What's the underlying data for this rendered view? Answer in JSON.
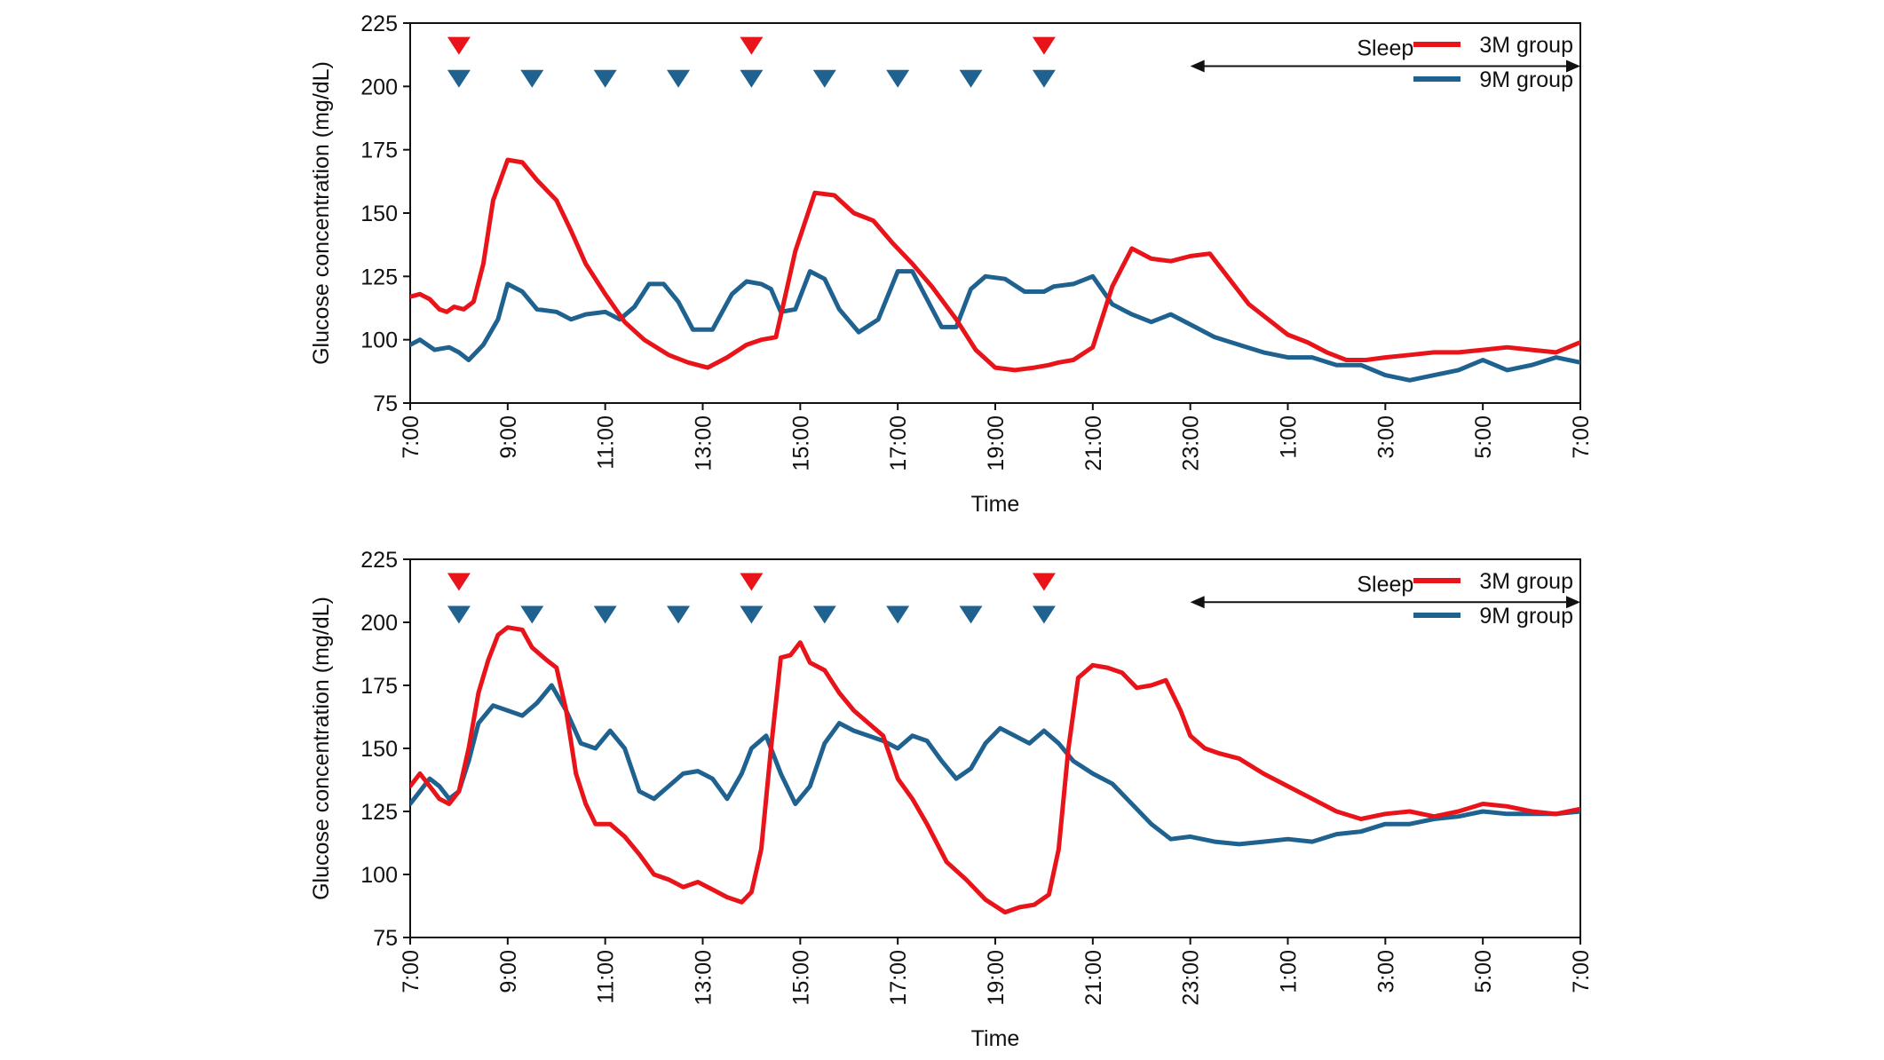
{
  "chart_data": [
    {
      "type": "line",
      "panel": "top",
      "xlabel": "Time",
      "ylabel": "Glucose concentration (mg/dL)",
      "ylim": [
        75,
        225
      ],
      "yticks": [
        75,
        100,
        125,
        150,
        175,
        200,
        225
      ],
      "xlim": [
        0,
        24
      ],
      "x_unit": "hours after 7:00",
      "xtick_labels": [
        "7:00",
        "9:00",
        "11:00",
        "13:00",
        "15:00",
        "17:00",
        "19:00",
        "21:00",
        "23:00",
        "1:00",
        "3:00",
        "5:00",
        "7:00"
      ],
      "annotation": {
        "text": "Sleep",
        "from_x": 16,
        "to_x": 24,
        "y": 208
      },
      "markers": [
        {
          "name": "3M group",
          "color": "#e8141a",
          "y": 216,
          "x": [
            1,
            7,
            13
          ]
        },
        {
          "name": "9M group",
          "color": "#1f6290",
          "y": 203,
          "x": [
            1,
            2.5,
            4,
            5.5,
            7,
            8.5,
            10,
            11.5,
            13
          ]
        }
      ],
      "series": [
        {
          "name": "3M group",
          "color": "#e8141a",
          "x": [
            0,
            0.2,
            0.4,
            0.6,
            0.75,
            0.9,
            1.1,
            1.3,
            1.5,
            1.7,
            2.0,
            2.3,
            2.6,
            3.0,
            3.3,
            3.6,
            4.0,
            4.4,
            4.8,
            5.3,
            5.7,
            6.1,
            6.5,
            6.9,
            7.2,
            7.5,
            7.7,
            7.9,
            8.3,
            8.7,
            9.1,
            9.5,
            9.9,
            10.3,
            10.7,
            11.2,
            11.6,
            12.0,
            12.4,
            12.8,
            13.1,
            13.3,
            13.6,
            14.0,
            14.4,
            14.8,
            15.2,
            15.6,
            16.0,
            16.4,
            16.8,
            17.2,
            17.6,
            18.0,
            18.4,
            18.8,
            19.2,
            19.6,
            20.0,
            20.5,
            21.0,
            21.5,
            22.0,
            22.5,
            23.0,
            23.5,
            24.0
          ],
          "values": [
            117,
            118,
            116,
            112,
            111,
            113,
            112,
            115,
            130,
            155,
            171,
            170,
            163,
            155,
            143,
            130,
            118,
            107,
            100,
            94,
            91,
            89,
            93,
            98,
            100,
            101,
            118,
            135,
            158,
            157,
            150,
            147,
            138,
            130,
            121,
            108,
            96,
            89,
            88,
            89,
            90,
            91,
            92,
            97,
            121,
            136,
            132,
            131,
            133,
            134,
            124,
            114,
            108,
            102,
            99,
            95,
            92,
            92,
            93,
            94,
            95,
            95,
            96,
            97,
            96,
            95,
            99
          ]
        },
        {
          "name": "9M group",
          "color": "#1f6290",
          "x": [
            0,
            0.2,
            0.5,
            0.8,
            1.0,
            1.2,
            1.5,
            1.8,
            2.0,
            2.3,
            2.6,
            3.0,
            3.3,
            3.6,
            4.0,
            4.3,
            4.6,
            4.9,
            5.2,
            5.5,
            5.8,
            6.2,
            6.6,
            6.9,
            7.2,
            7.4,
            7.6,
            7.9,
            8.2,
            8.5,
            8.8,
            9.2,
            9.6,
            10.0,
            10.3,
            10.6,
            10.9,
            11.2,
            11.5,
            11.8,
            12.2,
            12.6,
            13.0,
            13.2,
            13.6,
            14.0,
            14.4,
            14.8,
            15.2,
            15.6,
            16.0,
            16.5,
            17.0,
            17.5,
            18.0,
            18.5,
            19.0,
            19.5,
            20.0,
            20.5,
            21.0,
            21.5,
            22.0,
            22.5,
            23.0,
            23.5,
            24.0
          ],
          "values": [
            98,
            100,
            96,
            97,
            95,
            92,
            98,
            108,
            122,
            119,
            112,
            111,
            108,
            110,
            111,
            108,
            113,
            122,
            122,
            115,
            104,
            104,
            118,
            123,
            122,
            120,
            111,
            112,
            127,
            124,
            112,
            103,
            108,
            127,
            127,
            116,
            105,
            105,
            120,
            125,
            124,
            119,
            119,
            121,
            122,
            125,
            114,
            110,
            107,
            110,
            106,
            101,
            98,
            95,
            93,
            93,
            90,
            90,
            86,
            84,
            86,
            88,
            92,
            88,
            90,
            93,
            91
          ]
        }
      ]
    },
    {
      "type": "line",
      "panel": "bottom",
      "xlabel": "Time",
      "ylabel": "Glucose concentration (mg/dL)",
      "ylim": [
        75,
        225
      ],
      "yticks": [
        75,
        100,
        125,
        150,
        175,
        200,
        225
      ],
      "xlim": [
        0,
        24
      ],
      "x_unit": "hours after 7:00",
      "xtick_labels": [
        "7:00",
        "9:00",
        "11:00",
        "13:00",
        "15:00",
        "17:00",
        "19:00",
        "21:00",
        "23:00",
        "1:00",
        "3:00",
        "5:00",
        "7:00"
      ],
      "annotation": {
        "text": "Sleep",
        "from_x": 16,
        "to_x": 24,
        "y": 208
      },
      "markers": [
        {
          "name": "3M group",
          "color": "#e8141a",
          "y": 216,
          "x": [
            1,
            7,
            13
          ]
        },
        {
          "name": "9M group",
          "color": "#1f6290",
          "y": 203,
          "x": [
            1,
            2.5,
            4,
            5.5,
            7,
            8.5,
            10,
            11.5,
            13
          ]
        }
      ],
      "series": [
        {
          "name": "3M group",
          "color": "#e8141a",
          "x": [
            0,
            0.2,
            0.4,
            0.6,
            0.8,
            1.0,
            1.2,
            1.4,
            1.6,
            1.8,
            2.0,
            2.3,
            2.5,
            2.8,
            3.0,
            3.2,
            3.4,
            3.6,
            3.8,
            4.1,
            4.4,
            4.7,
            5.0,
            5.3,
            5.6,
            5.9,
            6.2,
            6.5,
            6.8,
            7.0,
            7.2,
            7.4,
            7.6,
            7.8,
            8.0,
            8.2,
            8.5,
            8.8,
            9.1,
            9.4,
            9.7,
            10.0,
            10.3,
            10.6,
            11.0,
            11.4,
            11.8,
            12.2,
            12.5,
            12.8,
            13.1,
            13.3,
            13.5,
            13.7,
            14.0,
            14.3,
            14.6,
            14.9,
            15.2,
            15.5,
            15.8,
            16.0,
            16.3,
            16.6,
            17.0,
            17.5,
            18.0,
            18.5,
            19.0,
            19.5,
            20.0,
            20.5,
            21.0,
            21.5,
            22.0,
            22.5,
            23.0,
            23.5,
            24.0
          ],
          "values": [
            135,
            140,
            135,
            130,
            128,
            133,
            150,
            172,
            185,
            195,
            198,
            197,
            190,
            185,
            182,
            165,
            140,
            128,
            120,
            120,
            115,
            108,
            100,
            98,
            95,
            97,
            94,
            91,
            89,
            93,
            110,
            150,
            186,
            187,
            192,
            184,
            181,
            172,
            165,
            160,
            155,
            138,
            130,
            120,
            105,
            98,
            90,
            85,
            87,
            88,
            92,
            110,
            150,
            178,
            183,
            182,
            180,
            174,
            175,
            177,
            165,
            155,
            150,
            148,
            146,
            140,
            135,
            130,
            125,
            122,
            124,
            125,
            123,
            125,
            128,
            127,
            125,
            124,
            126
          ]
        },
        {
          "name": "9M group",
          "color": "#1f6290",
          "x": [
            0,
            0.2,
            0.4,
            0.6,
            0.8,
            1.0,
            1.2,
            1.4,
            1.7,
            2.0,
            2.3,
            2.6,
            2.9,
            3.2,
            3.5,
            3.8,
            4.1,
            4.4,
            4.7,
            5.0,
            5.3,
            5.6,
            5.9,
            6.2,
            6.5,
            6.8,
            7.0,
            7.3,
            7.6,
            7.9,
            8.2,
            8.5,
            8.8,
            9.1,
            9.4,
            9.7,
            10.0,
            10.3,
            10.6,
            10.9,
            11.2,
            11.5,
            11.8,
            12.1,
            12.4,
            12.7,
            13.0,
            13.3,
            13.6,
            14.0,
            14.4,
            14.8,
            15.2,
            15.6,
            16.0,
            16.5,
            17.0,
            17.5,
            18.0,
            18.5,
            19.0,
            19.5,
            20.0,
            20.5,
            21.0,
            21.5,
            22.0,
            22.5,
            23.0,
            23.5,
            24.0
          ],
          "values": [
            128,
            133,
            138,
            135,
            130,
            133,
            145,
            160,
            167,
            165,
            163,
            168,
            175,
            165,
            152,
            150,
            157,
            150,
            133,
            130,
            135,
            140,
            141,
            138,
            130,
            140,
            150,
            155,
            140,
            128,
            135,
            152,
            160,
            157,
            155,
            153,
            150,
            155,
            153,
            145,
            138,
            142,
            152,
            158,
            155,
            152,
            157,
            152,
            145,
            140,
            136,
            128,
            120,
            114,
            115,
            113,
            112,
            113,
            114,
            113,
            116,
            117,
            120,
            120,
            122,
            123,
            125,
            124,
            124,
            124,
            125
          ]
        }
      ]
    }
  ]
}
